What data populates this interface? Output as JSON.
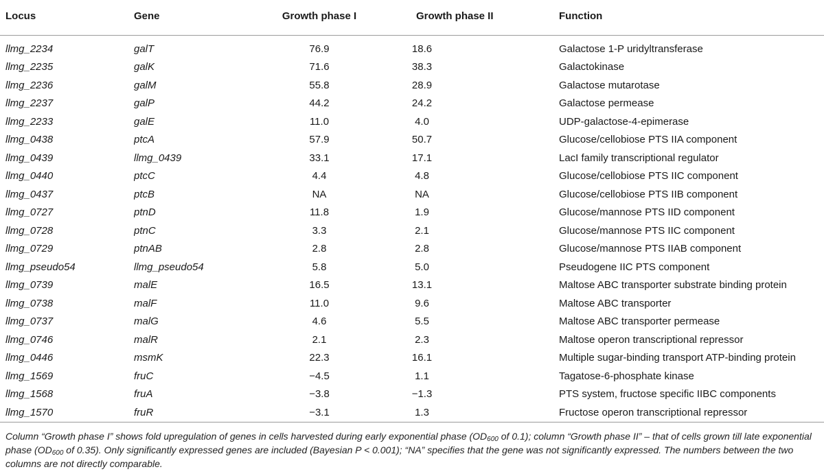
{
  "table": {
    "headers": {
      "locus": "Locus",
      "gene": "Gene",
      "growth_phase_1": "Growth phase I",
      "growth_phase_2": "Growth phase II",
      "function": "Function"
    },
    "rows": [
      {
        "locus": "llmg_2234",
        "gene": "galT",
        "g1": "76.9",
        "g2": "18.6",
        "function": "Galactose 1-P uridyltransferase"
      },
      {
        "locus": "llmg_2235",
        "gene": "galK",
        "g1": "71.6",
        "g2": "38.3",
        "function": "Galactokinase"
      },
      {
        "locus": "llmg_2236",
        "gene": "galM",
        "g1": "55.8",
        "g2": "28.9",
        "function": "Galactose mutarotase"
      },
      {
        "locus": "llmg_2237",
        "gene": "galP",
        "g1": "44.2",
        "g2": "24.2",
        "function": "Galactose permease"
      },
      {
        "locus": "llmg_2233",
        "gene": "galE",
        "g1": "11.0",
        "g2": "4.0",
        "function": "UDP-galactose-4-epimerase"
      },
      {
        "locus": "llmg_0438",
        "gene": "ptcA",
        "g1": "57.9",
        "g2": "50.7",
        "function": "Glucose/cellobiose PTS IIA component"
      },
      {
        "locus": "llmg_0439",
        "gene": "llmg_0439",
        "g1": "33.1",
        "g2": "17.1",
        "function": "LacI family transcriptional regulator"
      },
      {
        "locus": "llmg_0440",
        "gene": "ptcC",
        "g1": "4.4",
        "g2": "4.8",
        "function": "Glucose/cellobiose PTS IIC component"
      },
      {
        "locus": "llmg_0437",
        "gene": "ptcB",
        "g1": "NA",
        "g2": "NA",
        "function": "Glucose/cellobiose PTS IIB component"
      },
      {
        "locus": "llmg_0727",
        "gene": "ptnD",
        "g1": "11.8",
        "g2": "1.9",
        "function": "Glucose/mannose PTS IID component"
      },
      {
        "locus": "llmg_0728",
        "gene": "ptnC",
        "g1": "3.3",
        "g2": "2.1",
        "function": "Glucose/mannose PTS IIC component"
      },
      {
        "locus": "llmg_0729",
        "gene": "ptnAB",
        "g1": "2.8",
        "g2": "2.8",
        "function": "Glucose/mannose PTS IIAB component"
      },
      {
        "locus": "llmg_pseudo54",
        "gene": "llmg_pseudo54",
        "g1": "5.8",
        "g2": "5.0",
        "function": "Pseudogene IIC PTS component"
      },
      {
        "locus": "llmg_0739",
        "gene": "malE",
        "g1": "16.5",
        "g2": "13.1",
        "function": "Maltose ABC transporter substrate binding protein"
      },
      {
        "locus": "llmg_0738",
        "gene": "malF",
        "g1": "11.0",
        "g2": "9.6",
        "function": "Maltose ABC transporter"
      },
      {
        "locus": "llmg_0737",
        "gene": "malG",
        "g1": "4.6",
        "g2": "5.5",
        "function": "Maltose ABC transporter permease"
      },
      {
        "locus": "llmg_0746",
        "gene": "malR",
        "g1": "2.1",
        "g2": "2.3",
        "function": "Maltose operon transcriptional repressor"
      },
      {
        "locus": "llmg_0446",
        "gene": "msmK",
        "g1": "22.3",
        "g2": "16.1",
        "function": "Multiple sugar-binding transport ATP-binding protein"
      },
      {
        "locus": "llmg_1569",
        "gene": "fruC",
        "g1": "−4.5",
        "g2": "1.1",
        "function": "Tagatose-6-phosphate kinase"
      },
      {
        "locus": "llmg_1568",
        "gene": "fruA",
        "g1": "−3.8",
        "g2": "−1.3",
        "function": "PTS system, fructose specific IIBC components"
      },
      {
        "locus": "llmg_1570",
        "gene": "fruR",
        "g1": "−3.1",
        "g2": "1.3",
        "function": "Fructose operon transcriptional repressor"
      }
    ]
  },
  "caption": {
    "part1": "Column “Growth phase I” shows fold upregulation of genes in cells harvested during early exponential phase (OD",
    "sub1": "600",
    "part2": " of 0.1); column “Growth phase II” – that of cells grown till late exponential phase (OD",
    "sub2": "600",
    "part3": " of 0.35). Only significantly expressed genes are included (Bayesian P < 0.001); “NA” specifies that the gene was not significantly expressed. The numbers between the two columns are not directly comparable."
  }
}
